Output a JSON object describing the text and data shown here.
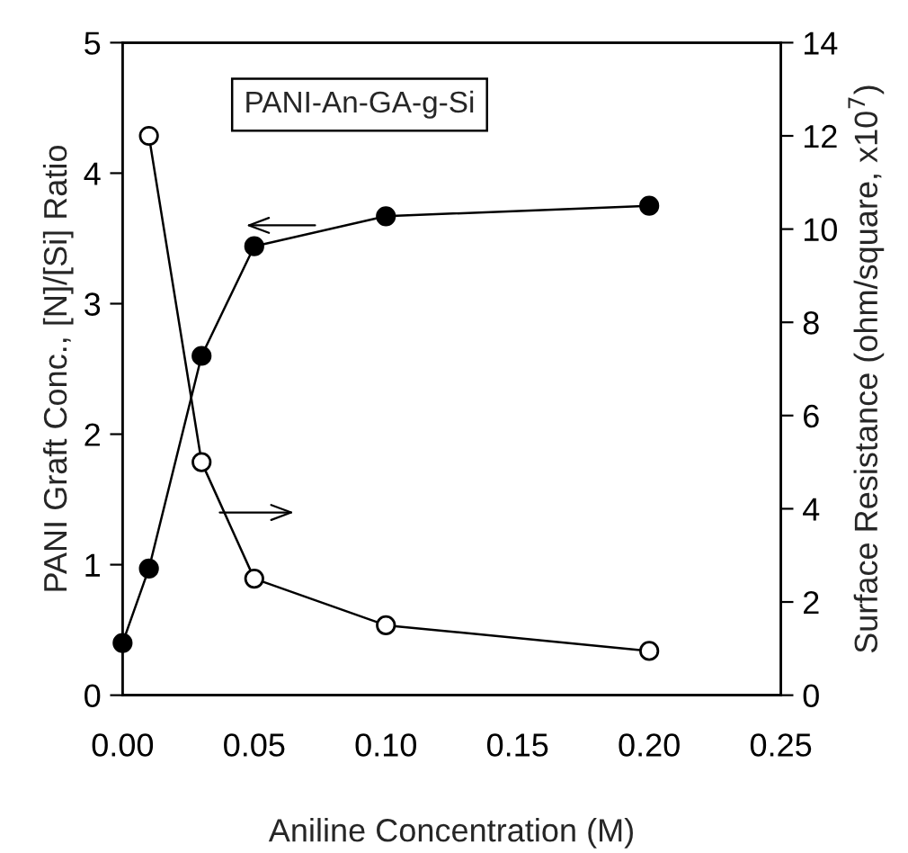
{
  "chart_data": {
    "type": "line",
    "xlabel": "Aniline Concentration (M)",
    "ylabel": "PANI Graft Conc., [N]/[Si] Ratio",
    "y2label": "Surface Resistance (ohm/square, x10$^{7}$)",
    "annotations": [
      "PANI-An-GA-g-Si"
    ],
    "marker": "circle",
    "line_style": "solid",
    "grid": false,
    "legend": false,
    "xlim": [
      0,
      0.25
    ],
    "xticks": [
      {
        "value": 0,
        "label": "0.00"
      },
      {
        "value": 0.05,
        "label": "0.05"
      },
      {
        "value": 0.1,
        "label": "0.10"
      },
      {
        "value": 0.15,
        "label": "0.15"
      },
      {
        "value": 0.2,
        "label": "0.20"
      },
      {
        "value": 0.25,
        "label": "0.25"
      }
    ],
    "ylim": [
      0,
      5
    ],
    "yticks": [
      0,
      1,
      2,
      3,
      4,
      5
    ],
    "y2lim": [
      0,
      14
    ],
    "y2ticks": [
      0,
      2,
      4,
      6,
      8,
      10,
      12,
      14
    ],
    "series": [
      {
        "color": "#000000",
        "x": [
          0,
          0.01,
          0.03,
          0.05,
          0.1,
          0.2
        ],
        "values": [
          0.4,
          0.97,
          2.6,
          3.44,
          3.67,
          3.75
        ]
      },
      {
        "color": "#ffffff",
        "axis": "y2",
        "x": [
          0.01,
          0.03,
          0.05,
          0.1,
          0.2
        ],
        "values": [
          12.0,
          5.0,
          2.5,
          1.5,
          0.95
        ]
      }
    ]
  }
}
